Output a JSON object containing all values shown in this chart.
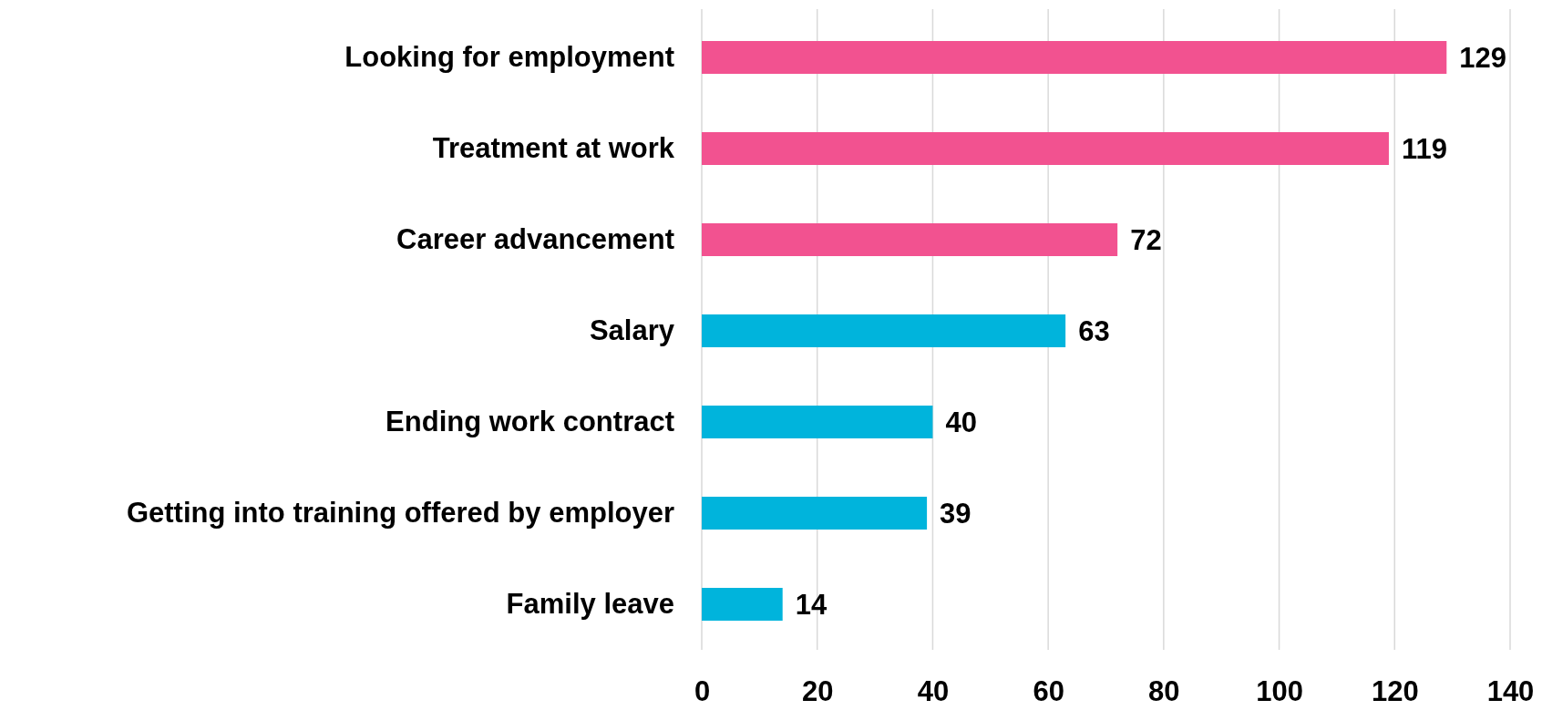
{
  "chart_data": {
    "type": "bar",
    "orientation": "horizontal",
    "categories": [
      "Looking for employment",
      "Treatment at work",
      "Career advancement",
      "Salary",
      "Ending work contract",
      "Getting into training offered by employer",
      "Family leave"
    ],
    "values": [
      129,
      119,
      72,
      63,
      40,
      39,
      14
    ],
    "colors": [
      "#f25290",
      "#f25290",
      "#f25290",
      "#00b4dc",
      "#00b4dc",
      "#00b4dc",
      "#00b4dc"
    ],
    "xlim": [
      0,
      140
    ],
    "xticks": [
      0,
      20,
      40,
      60,
      80,
      100,
      120,
      140
    ],
    "grid": "x",
    "data_labels": true
  }
}
